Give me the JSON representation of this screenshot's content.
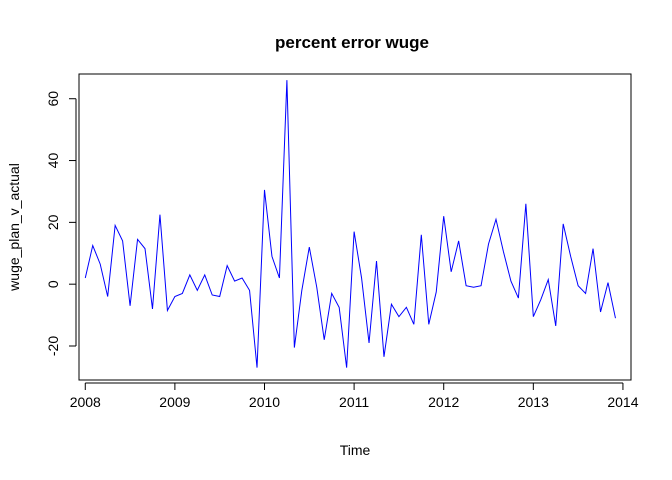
{
  "chart_data": {
    "type": "line",
    "title": "percent error wuge",
    "xlabel": "Time",
    "ylabel": "wuge_plan_v_actual",
    "xlim": [
      2007.93,
      2014.09
    ],
    "ylim": [
      -31,
      68
    ],
    "x_ticks": [
      2008,
      2009,
      2010,
      2011,
      2012,
      2013,
      2014
    ],
    "x_tick_labels": [
      "2008",
      "2009",
      "2010",
      "2011",
      "2012",
      "2013",
      "2014"
    ],
    "y_ticks": [
      -20,
      0,
      20,
      40,
      60
    ],
    "y_tick_labels": [
      "-20",
      "0",
      "20",
      "40",
      "60"
    ],
    "grid": false,
    "series": [
      {
        "color": "#0000ff",
        "x_start": 2008,
        "frequency": 12,
        "values": [
          2,
          12.5,
          6.5,
          -4,
          19,
          14,
          -7,
          14.5,
          11.5,
          -8,
          22.5,
          -8.5,
          -4,
          -3,
          3,
          -2,
          3,
          -3.5,
          -4,
          6,
          1,
          2,
          -2,
          -27,
          30.5,
          9,
          2,
          66,
          -20.5,
          -2,
          12,
          -1,
          -18,
          -3,
          -7.5,
          -27,
          17,
          2,
          -19,
          7.5,
          -23.5,
          -6.5,
          -10.5,
          -7.5,
          -13,
          16,
          -13,
          -2.5,
          22,
          4,
          14,
          -0.5,
          -1,
          -0.5,
          13,
          21,
          10.5,
          1,
          -4.5,
          26,
          -10.5,
          -5,
          1.5,
          -13.5,
          19.5,
          9,
          -0.5,
          -3,
          11.5,
          -9,
          0.5,
          -11
        ]
      }
    ]
  }
}
